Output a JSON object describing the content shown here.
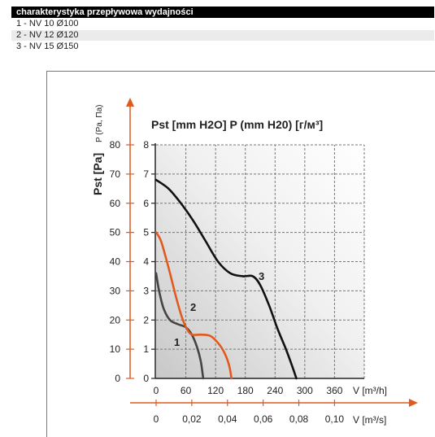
{
  "header": {
    "title": "charakterystyka przepływowa wydajności"
  },
  "legend_rows": [
    "1 - NV 10 Ø100",
    "2 - NV 12 Ø120",
    "3 - NV 15 Ø150"
  ],
  "chart_data": {
    "type": "line",
    "title": "Pst [mm H2O]  P (mm H20) [г/м³]",
    "xlabel": "V [m³/h]",
    "xlabel2": "V [m³/s]",
    "ylabel": "Pst [Pa]",
    "ylabel_alt": "P (Pa, Па)",
    "x_ticks": [
      "0",
      "60",
      "120",
      "180",
      "240",
      "300",
      "360"
    ],
    "x2_ticks": [
      "0",
      "0,02",
      "0,04",
      "0,06",
      "0,08",
      "0,10"
    ],
    "y_ticks_pa": [
      "0",
      "10",
      "20",
      "30",
      "40",
      "50",
      "60",
      "70",
      "80"
    ],
    "y_ticks_mm": [
      "0",
      "1",
      "2",
      "3",
      "4",
      "5",
      "6",
      "7",
      "8"
    ],
    "xlim": [
      0,
      420
    ],
    "ylim_mm": [
      0,
      8
    ],
    "grid": true,
    "series": [
      {
        "name": "1",
        "color": "#444444",
        "points": [
          [
            0,
            3.6
          ],
          [
            6,
            3.0
          ],
          [
            15,
            2.4
          ],
          [
            28,
            2.0
          ],
          [
            45,
            1.85
          ],
          [
            60,
            1.75
          ],
          [
            72,
            1.5
          ],
          [
            82,
            1.1
          ],
          [
            90,
            0.6
          ],
          [
            95,
            0
          ]
        ]
      },
      {
        "name": "2",
        "color": "#e05a1e",
        "points": [
          [
            0,
            5.0
          ],
          [
            10,
            4.7
          ],
          [
            25,
            3.8
          ],
          [
            40,
            2.8
          ],
          [
            52,
            2.1
          ],
          [
            62,
            1.7
          ],
          [
            72,
            1.5
          ],
          [
            90,
            1.5
          ],
          [
            110,
            1.45
          ],
          [
            128,
            1.15
          ],
          [
            140,
            0.8
          ],
          [
            148,
            0.4
          ],
          [
            152,
            0
          ]
        ]
      },
      {
        "name": "3",
        "color": "#111111",
        "points": [
          [
            0,
            6.8
          ],
          [
            25,
            6.5
          ],
          [
            50,
            6.0
          ],
          [
            75,
            5.4
          ],
          [
            100,
            4.7
          ],
          [
            125,
            4.0
          ],
          [
            150,
            3.6
          ],
          [
            175,
            3.5
          ],
          [
            195,
            3.5
          ],
          [
            210,
            3.2
          ],
          [
            228,
            2.5
          ],
          [
            245,
            1.7
          ],
          [
            262,
            1.0
          ],
          [
            275,
            0.4
          ],
          [
            283,
            0
          ]
        ]
      }
    ],
    "curve_labels": [
      "1",
      "2",
      "3"
    ]
  }
}
